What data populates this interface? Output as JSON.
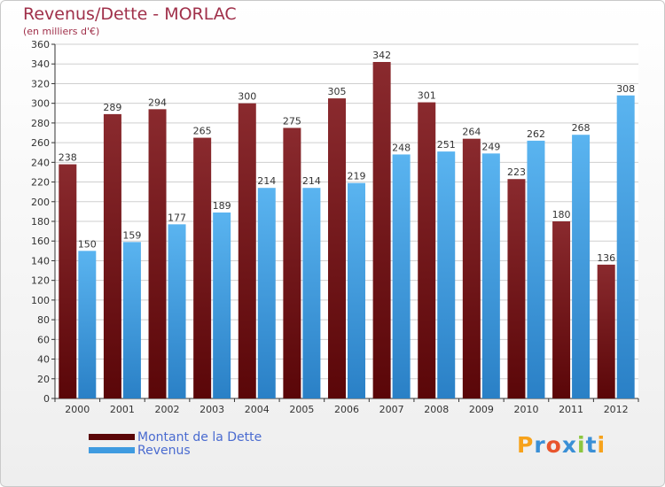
{
  "title": "Revenus/Dette - MORLAC",
  "subtitle": "(en milliers d'€)",
  "colors": {
    "dette": "#7a1a1e",
    "revenus": "#3f9be0",
    "title": "#a0304a",
    "legend_text": "#4a6bd0"
  },
  "legend": [
    {
      "label": "Montant de la Dette",
      "color": "#6a0f12"
    },
    {
      "label": "Revenus",
      "color": "#3f9be0"
    }
  ],
  "logo": {
    "text": "Proxiti",
    "letters": [
      "P",
      "r",
      "o",
      "x",
      "i",
      "t",
      "i"
    ],
    "colors": [
      "#f7a21b",
      "#3a8fd6",
      "#e8552d",
      "#3a8fd6",
      "#8cc63f",
      "#3a8fd6",
      "#f7a21b"
    ]
  },
  "chart_data": {
    "type": "bar",
    "title": "Revenus/Dette - MORLAC",
    "subtitle": "(en milliers d'€)",
    "categories": [
      "2000",
      "2001",
      "2002",
      "2003",
      "2004",
      "2005",
      "2006",
      "2007",
      "2008",
      "2009",
      "2010",
      "2011",
      "2012"
    ],
    "series": [
      {
        "name": "Montant de la Dette",
        "values": [
          238,
          289,
          294,
          265,
          300,
          275,
          305,
          342,
          301,
          264,
          223,
          180,
          136
        ]
      },
      {
        "name": "Revenus",
        "values": [
          150,
          159,
          177,
          189,
          214,
          214,
          219,
          248,
          251,
          249,
          262,
          268,
          308
        ]
      }
    ],
    "ylim": [
      0,
      360
    ],
    "yticks": [
      0,
      20,
      40,
      60,
      80,
      100,
      120,
      140,
      160,
      180,
      200,
      220,
      240,
      260,
      280,
      300,
      320,
      340,
      360
    ],
    "grid": true,
    "legend_position": "bottom-left"
  }
}
